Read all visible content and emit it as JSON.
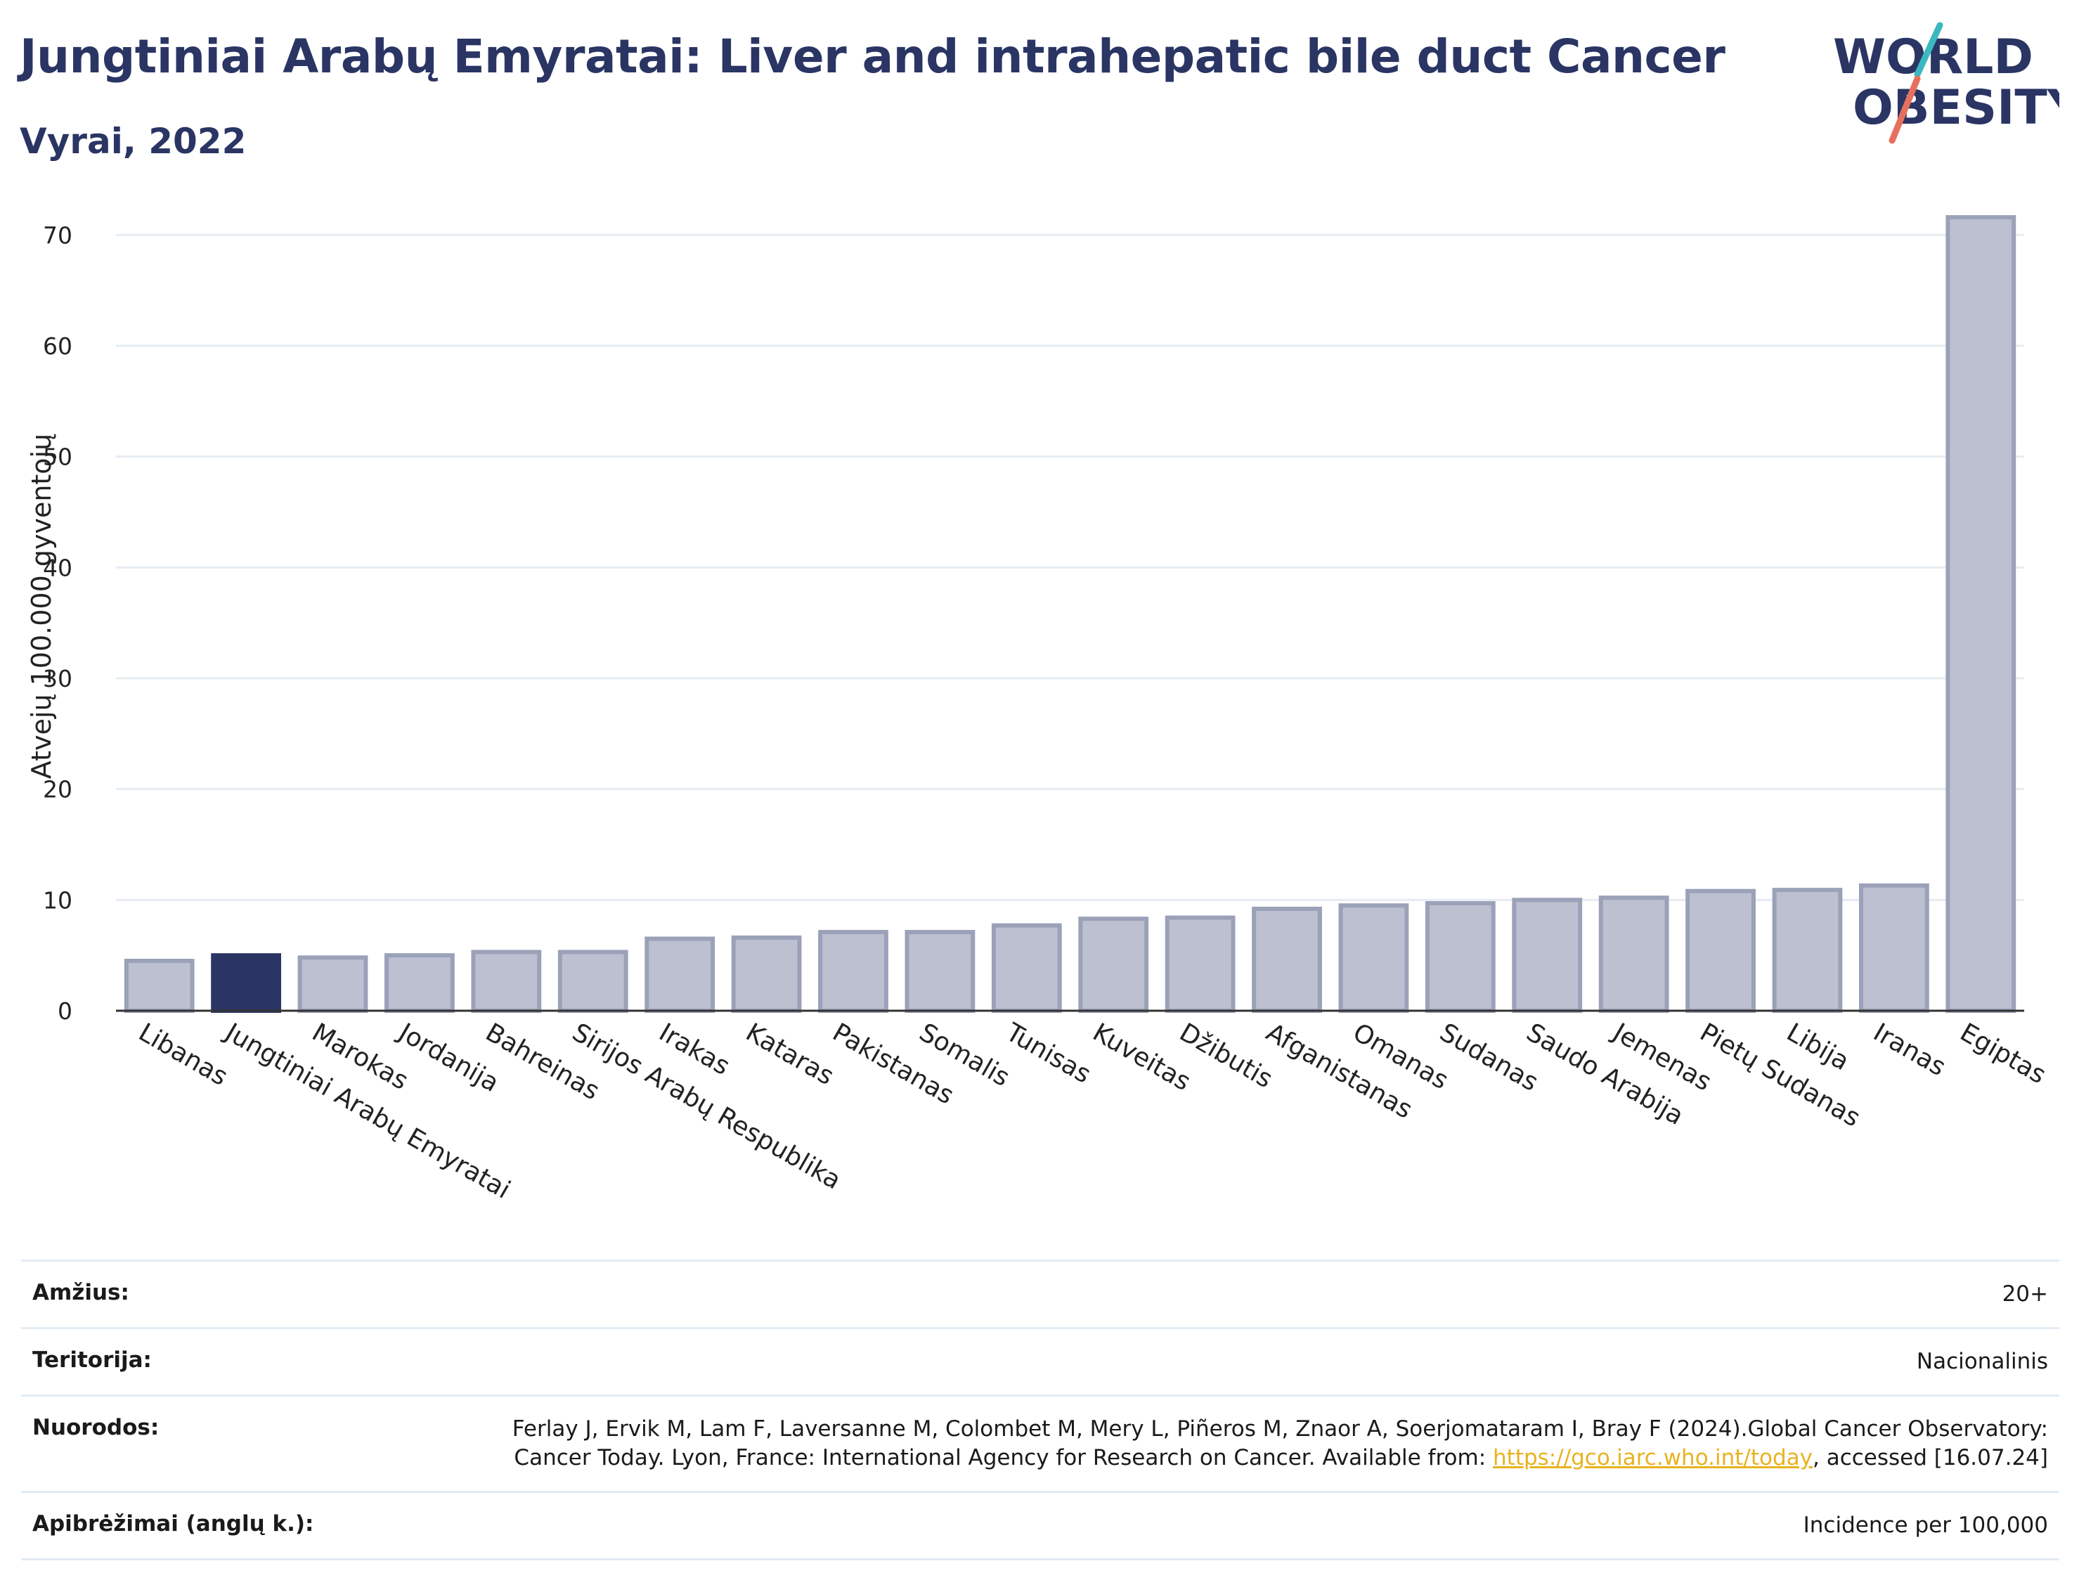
{
  "header": {
    "title": "Jungtiniai Arabų Emyratai: Liver and intrahepatic bile duct Cancer",
    "subtitle": "Vyrai, 2022"
  },
  "logo": {
    "line1": "WORLD",
    "line2": "OBESITY",
    "icon": "world-obesity-logo"
  },
  "colors": {
    "highlight": "#2a3564",
    "bar": "#bcc0d0",
    "bar_edge": "#9ba1b8",
    "grid": "#e6ecf2",
    "axis": "#333333",
    "link": "#e8b321"
  },
  "chart_data": {
    "type": "bar",
    "ylabel": "Atvejų 100.000 gyventojų",
    "ylim": [
      0,
      73
    ],
    "yticks": [
      0,
      10,
      20,
      30,
      40,
      50,
      60,
      70
    ],
    "grid": true,
    "highlight_category": "Jungtiniai Arabų Emyratai",
    "categories": [
      "Libanas",
      "Jungtiniai Arabų Emyratai",
      "Marokas",
      "Jordanija",
      "Bahreinas",
      "Sirijos Arabų Respublika",
      "Irakas",
      "Kataras",
      "Pakistanas",
      "Somalis",
      "Tunisas",
      "Kuveitas",
      "Džibutis",
      "Afganistanas",
      "Omanas",
      "Sudanas",
      "Saudo Arabija",
      "Jemenas",
      "Pietų Sudanas",
      "Libija",
      "Iranas",
      "Egiptas"
    ],
    "values": [
      4.5,
      5.0,
      4.8,
      5.0,
      5.3,
      5.3,
      6.5,
      6.6,
      7.1,
      7.1,
      7.7,
      8.3,
      8.4,
      9.2,
      9.5,
      9.7,
      10.0,
      10.2,
      10.8,
      10.9,
      11.3,
      71.6
    ]
  },
  "meta": [
    {
      "label": "Amžius:",
      "value": "20+"
    },
    {
      "label": "Teritorija:",
      "value": "Nacionalinis"
    },
    {
      "label": "Nuorodos:",
      "value_pre": "Ferlay J, Ervik M, Lam F, Laversanne M, Colombet M, Mery L, Piñeros M, Znaor A, Soerjomataram I, Bray F (2024).Global Cancer Observatory: Cancer Today. Lyon, France: International Agency for Research on Cancer. Available from: ",
      "link": "https://gco.iarc.who.int/today",
      "value_post": ", accessed [16.07.24]"
    },
    {
      "label": "Apibrėžimai (anglų k.):",
      "value": "Incidence per 100,000"
    }
  ]
}
